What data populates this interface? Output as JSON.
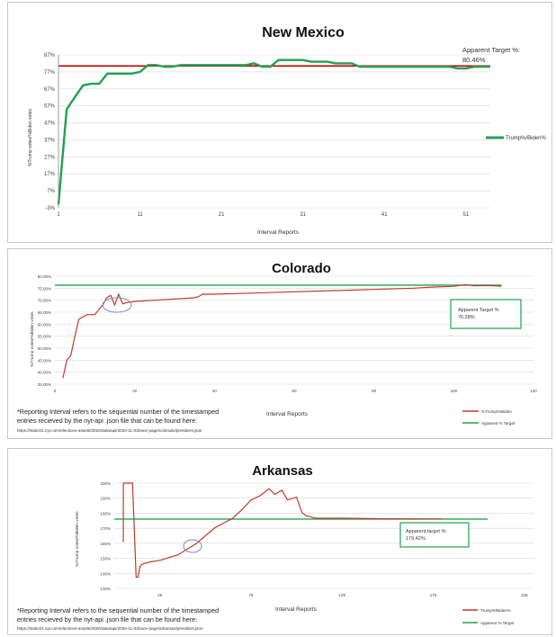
{
  "chart_data": [
    {
      "type": "line",
      "title": "New Mexico",
      "xlabel": "Interval Reports",
      "ylabel": "%Trump votes/%Biden votes",
      "x_ticks": [
        "1",
        "11",
        "21",
        "31",
        "41",
        "51"
      ],
      "y_ticks": [
        "-3%",
        "7%",
        "17%",
        "27%",
        "37%",
        "47%",
        "57%",
        "67%",
        "77%",
        "87%"
      ],
      "xlim": [
        1,
        54
      ],
      "ylim": [
        -3,
        87
      ],
      "series": [
        {
          "name": "Trump%/Biden%",
          "color": "#22a050",
          "x": [
            1,
            2,
            3,
            4,
            5,
            6,
            7,
            8,
            9,
            10,
            11,
            12,
            13,
            14,
            15,
            16,
            17,
            18,
            19,
            20,
            21,
            22,
            23,
            24,
            25,
            26,
            27,
            28,
            29,
            30,
            31,
            32,
            33,
            34,
            35,
            36,
            37,
            38,
            39,
            40,
            41,
            42,
            43,
            44,
            45,
            46,
            47,
            48,
            49,
            50,
            51,
            52,
            53,
            54
          ],
          "y": [
            -1,
            55,
            62,
            69,
            70,
            70,
            76,
            76,
            76,
            76,
            77,
            81,
            81,
            80,
            80,
            81,
            81,
            81,
            81,
            81,
            81,
            81,
            81,
            81,
            82,
            80,
            80,
            84,
            84,
            84,
            84,
            83,
            83,
            83,
            82,
            82,
            82,
            80,
            80,
            80,
            80,
            80,
            80,
            80,
            80,
            80,
            80,
            80,
            80,
            79,
            79,
            80,
            80,
            80
          ]
        }
      ],
      "target": {
        "name": "Apparent Target %",
        "value": 80.46,
        "color": "#c00000"
      },
      "annotation": "Apparent Target %:\n80.46%"
    },
    {
      "type": "line",
      "title": "Colorado",
      "xlabel": "Interval Reports",
      "ylabel": "%Trump votes/%Biden votes",
      "x_ticks": [
        "0",
        "20",
        "40",
        "60",
        "80",
        "100",
        "120"
      ],
      "y_ticks": [
        "35.00%",
        "40.00%",
        "45.00%",
        "50.00%",
        "55.00%",
        "60.00%",
        "65.00%",
        "70.00%",
        "75.00%",
        "80.00%"
      ],
      "xlim": [
        0,
        120
      ],
      "ylim": [
        35,
        80
      ],
      "series": [
        {
          "name": "%Trump/%Biden",
          "color": "#c0392b",
          "x": [
            2,
            3,
            4,
            5,
            6,
            7,
            8,
            10,
            12,
            13,
            14,
            15,
            16,
            17,
            18,
            20,
            25,
            30,
            35,
            36,
            37,
            40,
            50,
            60,
            70,
            80,
            90,
            95,
            100,
            103,
            105,
            108,
            110,
            112
          ],
          "y": [
            37.5,
            45,
            47,
            55,
            62,
            63,
            64,
            64,
            68,
            71,
            72,
            68,
            72.5,
            68.5,
            69,
            69.5,
            70,
            70.5,
            71,
            71.5,
            72.5,
            72.5,
            73,
            73.5,
            74,
            74.5,
            75,
            75.5,
            75.8,
            76.5,
            76,
            76.1,
            76,
            75.8
          ]
        },
        {
          "name": "Apparent % Target",
          "color": "#22a050",
          "x": [
            0,
            112
          ],
          "y": [
            76.28,
            76.28
          ]
        }
      ],
      "annotation": "Apparent Target %\n76.28%"
    },
    {
      "type": "line",
      "title": "Arkansas",
      "xlabel": "Interval Reports",
      "ylabel": "%Trump votes/%Biden votes",
      "x_ticks": [
        "25",
        "75",
        "125",
        "175",
        "225"
      ],
      "y_ticks": [
        "130%",
        "140%",
        "150%",
        "160%",
        "170%",
        "180%",
        "190%",
        "200%"
      ],
      "xlim": [
        0,
        230
      ],
      "ylim": [
        130,
        205
      ],
      "series": [
        {
          "name": "Trump%/Biden%",
          "color": "#c0392b",
          "x": [
            5,
            5,
            5,
            10,
            12,
            13,
            14,
            15,
            17,
            20,
            25,
            35,
            45,
            55,
            65,
            70,
            75,
            80,
            85,
            88,
            92,
            95,
            100,
            103,
            105,
            108,
            110,
            115,
            125,
            150,
            175,
            180
          ],
          "y": [
            208,
            163,
            208,
            208,
            138,
            138,
            145,
            147,
            148,
            149,
            150,
            154,
            162,
            173,
            180,
            186,
            193,
            196,
            201,
            197,
            200,
            193,
            195,
            184,
            182,
            181,
            180,
            180,
            180,
            179.6,
            179.5,
            179.5
          ]
        },
        {
          "name": "Apparent % Target",
          "color": "#22a050",
          "x": [
            0,
            205
          ],
          "y": [
            179.42,
            179.42
          ]
        }
      ],
      "annotation": "Apparent target %:\n179.42%"
    }
  ],
  "notes": {
    "footnote": "*Reporting Interval refers to the sequential number of the timestamped\nentries recieved by the nyt-api .json file that can be found here:",
    "colorado_url": "https://static01.nyt.com/elections-assets/2020/data/api/2020-11-03/race-page/colorado/president.json",
    "arkansas_url": "https://static01.nyt.com/elections-assets/2020/data/api/2020-11-03/race-page/arkansas/president.json"
  },
  "colors": {
    "trump_nm": "#22a050",
    "target_red": "#c00000",
    "trump_red": "#c0392b",
    "target_green": "#22a050",
    "grid": "#d9d9d9",
    "circle": "#7f86c8"
  }
}
